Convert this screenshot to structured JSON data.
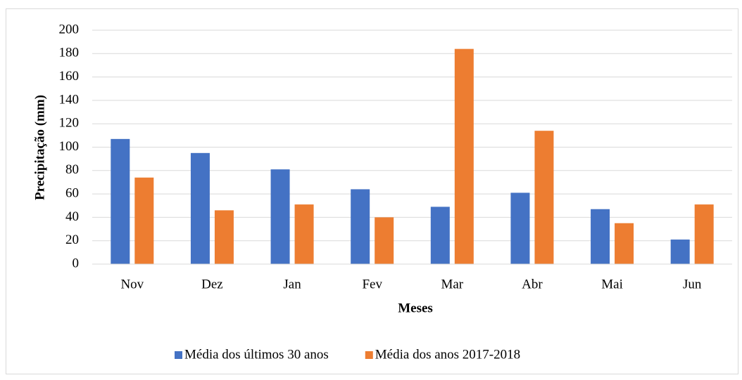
{
  "chart_data": {
    "type": "bar",
    "x_label": "Meses",
    "y_label": "Precipitação (mm)",
    "categories": [
      "Nov",
      "Dez",
      "Jan",
      "Fev",
      "Mar",
      "Abr",
      "Mai",
      "Jun"
    ],
    "series": [
      {
        "name": "Média dos últimos 30 anos",
        "color": "#4472c4",
        "values": [
          107,
          95,
          81,
          64,
          49,
          61,
          47,
          21
        ]
      },
      {
        "name": "Média dos anos 2017-2018",
        "color": "#ed7d31",
        "values": [
          74,
          46,
          51,
          40,
          184,
          114,
          35,
          51
        ]
      }
    ],
    "ylim": [
      0,
      200
    ],
    "yticks": [
      0,
      20,
      40,
      60,
      80,
      100,
      120,
      140,
      160,
      180,
      200
    ],
    "grid": true,
    "legend": "bottom"
  }
}
